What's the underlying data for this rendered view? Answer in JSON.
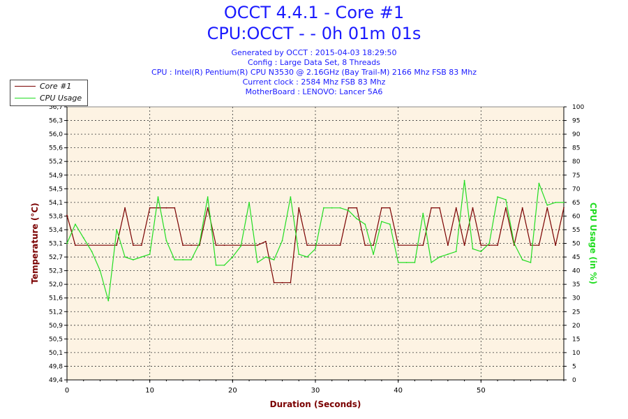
{
  "title_line1": "OCCT 4.4.1 - Core #1",
  "title_line2": "CPU:OCCT -  - 0h 01m 01s",
  "info": {
    "generated": "Generated by OCCT : 2015-04-03 18:29:50",
    "config": "Config : Large Data Set, 8 Threads",
    "cpu": "CPU : Intel(R) Pentium(R) CPU N3530 @ 2.16GHz (Bay Trail-M) 2166 Mhz FSB 83 Mhz",
    "clock": "Current clock : 2584 Mhz FSB 83 Mhz",
    "motherboard": "MotherBoard : LENOVO: Lancer 5A6"
  },
  "colors": {
    "temp_series": "#7a0000",
    "usage_series": "#22dd22",
    "plot_background": "#fdf3e3",
    "title": "#1a1aff"
  },
  "chart_data": {
    "type": "line",
    "xlabel": "Duration (Seconds)",
    "ylabel": "Temperature (°C)",
    "y2label": "CPU Usage (in %)",
    "xlim": [
      0,
      60
    ],
    "ylim": [
      49.4,
      56.7
    ],
    "y2lim": [
      0,
      100
    ],
    "xticks": [
      "0",
      "10",
      "20",
      "30",
      "40",
      "50"
    ],
    "yticks": [
      "49,4",
      "49,8",
      "50,1",
      "50,5",
      "50,9",
      "51,2",
      "51,6",
      "52,0",
      "52,3",
      "52,7",
      "53,1",
      "53,4",
      "53,8",
      "54,1",
      "54,5",
      "54,9",
      "55,2",
      "55,6",
      "56,0",
      "56,3",
      "56,7"
    ],
    "y2ticks": [
      "0",
      "5",
      "10",
      "15",
      "20",
      "25",
      "30",
      "35",
      "40",
      "45",
      "50",
      "55",
      "60",
      "65",
      "70",
      "75",
      "80",
      "85",
      "90",
      "95",
      "100"
    ],
    "grid": true,
    "legend_position": "top-left",
    "series": [
      {
        "name": "Core #1",
        "axis": "left",
        "x": [
          0,
          1,
          6,
          7,
          8,
          9,
          10,
          11,
          12,
          13,
          14,
          15,
          16,
          17,
          18,
          19,
          23,
          24,
          25,
          26,
          27,
          28,
          29,
          30,
          33,
          34,
          35,
          36,
          37,
          38,
          39,
          40,
          43,
          44,
          45,
          46,
          47,
          48,
          49,
          50,
          51,
          52,
          53,
          54,
          55,
          56,
          57,
          58,
          59,
          60
        ],
        "y": [
          53.8,
          53.0,
          53.0,
          54.0,
          53.0,
          53.0,
          54.0,
          54.0,
          54.0,
          54.0,
          53.0,
          53.0,
          53.0,
          54.0,
          53.0,
          53.0,
          53.0,
          53.1,
          52.0,
          52.0,
          52.0,
          54.0,
          53.0,
          53.0,
          53.0,
          54.0,
          54.0,
          53.0,
          53.0,
          54.0,
          54.0,
          53.0,
          53.0,
          54.0,
          54.0,
          53.0,
          54.0,
          53.0,
          54.0,
          53.0,
          53.0,
          53.0,
          54.0,
          53.0,
          54.0,
          53.0,
          53.0,
          54.0,
          53.0,
          54.0
        ]
      },
      {
        "name": "CPU Usage",
        "axis": "right",
        "x": [
          0,
          1,
          2,
          3,
          4,
          5,
          6,
          7,
          8,
          9,
          10,
          11,
          12,
          13,
          14,
          15,
          16,
          17,
          18,
          19,
          20,
          21,
          22,
          23,
          24,
          25,
          26,
          27,
          28,
          29,
          30,
          31,
          32,
          33,
          34,
          35,
          36,
          37,
          38,
          39,
          40,
          41,
          42,
          43,
          44,
          45,
          46,
          47,
          48,
          49,
          50,
          51,
          52,
          53,
          54,
          55,
          56,
          57,
          58,
          59,
          60
        ],
        "y": [
          50,
          57,
          52,
          47,
          40,
          29,
          55,
          45,
          44,
          45,
          46,
          67,
          51,
          44,
          44,
          44,
          50,
          67,
          42,
          42,
          45,
          49,
          65,
          43,
          45,
          44,
          51,
          67,
          46,
          45,
          48,
          63,
          63,
          63,
          62,
          59,
          57,
          46,
          58,
          57,
          43,
          43,
          43,
          61,
          43,
          45,
          46,
          47,
          73,
          48,
          47,
          50,
          67,
          66,
          50,
          44,
          43,
          72,
          64,
          65,
          65
        ]
      }
    ]
  }
}
